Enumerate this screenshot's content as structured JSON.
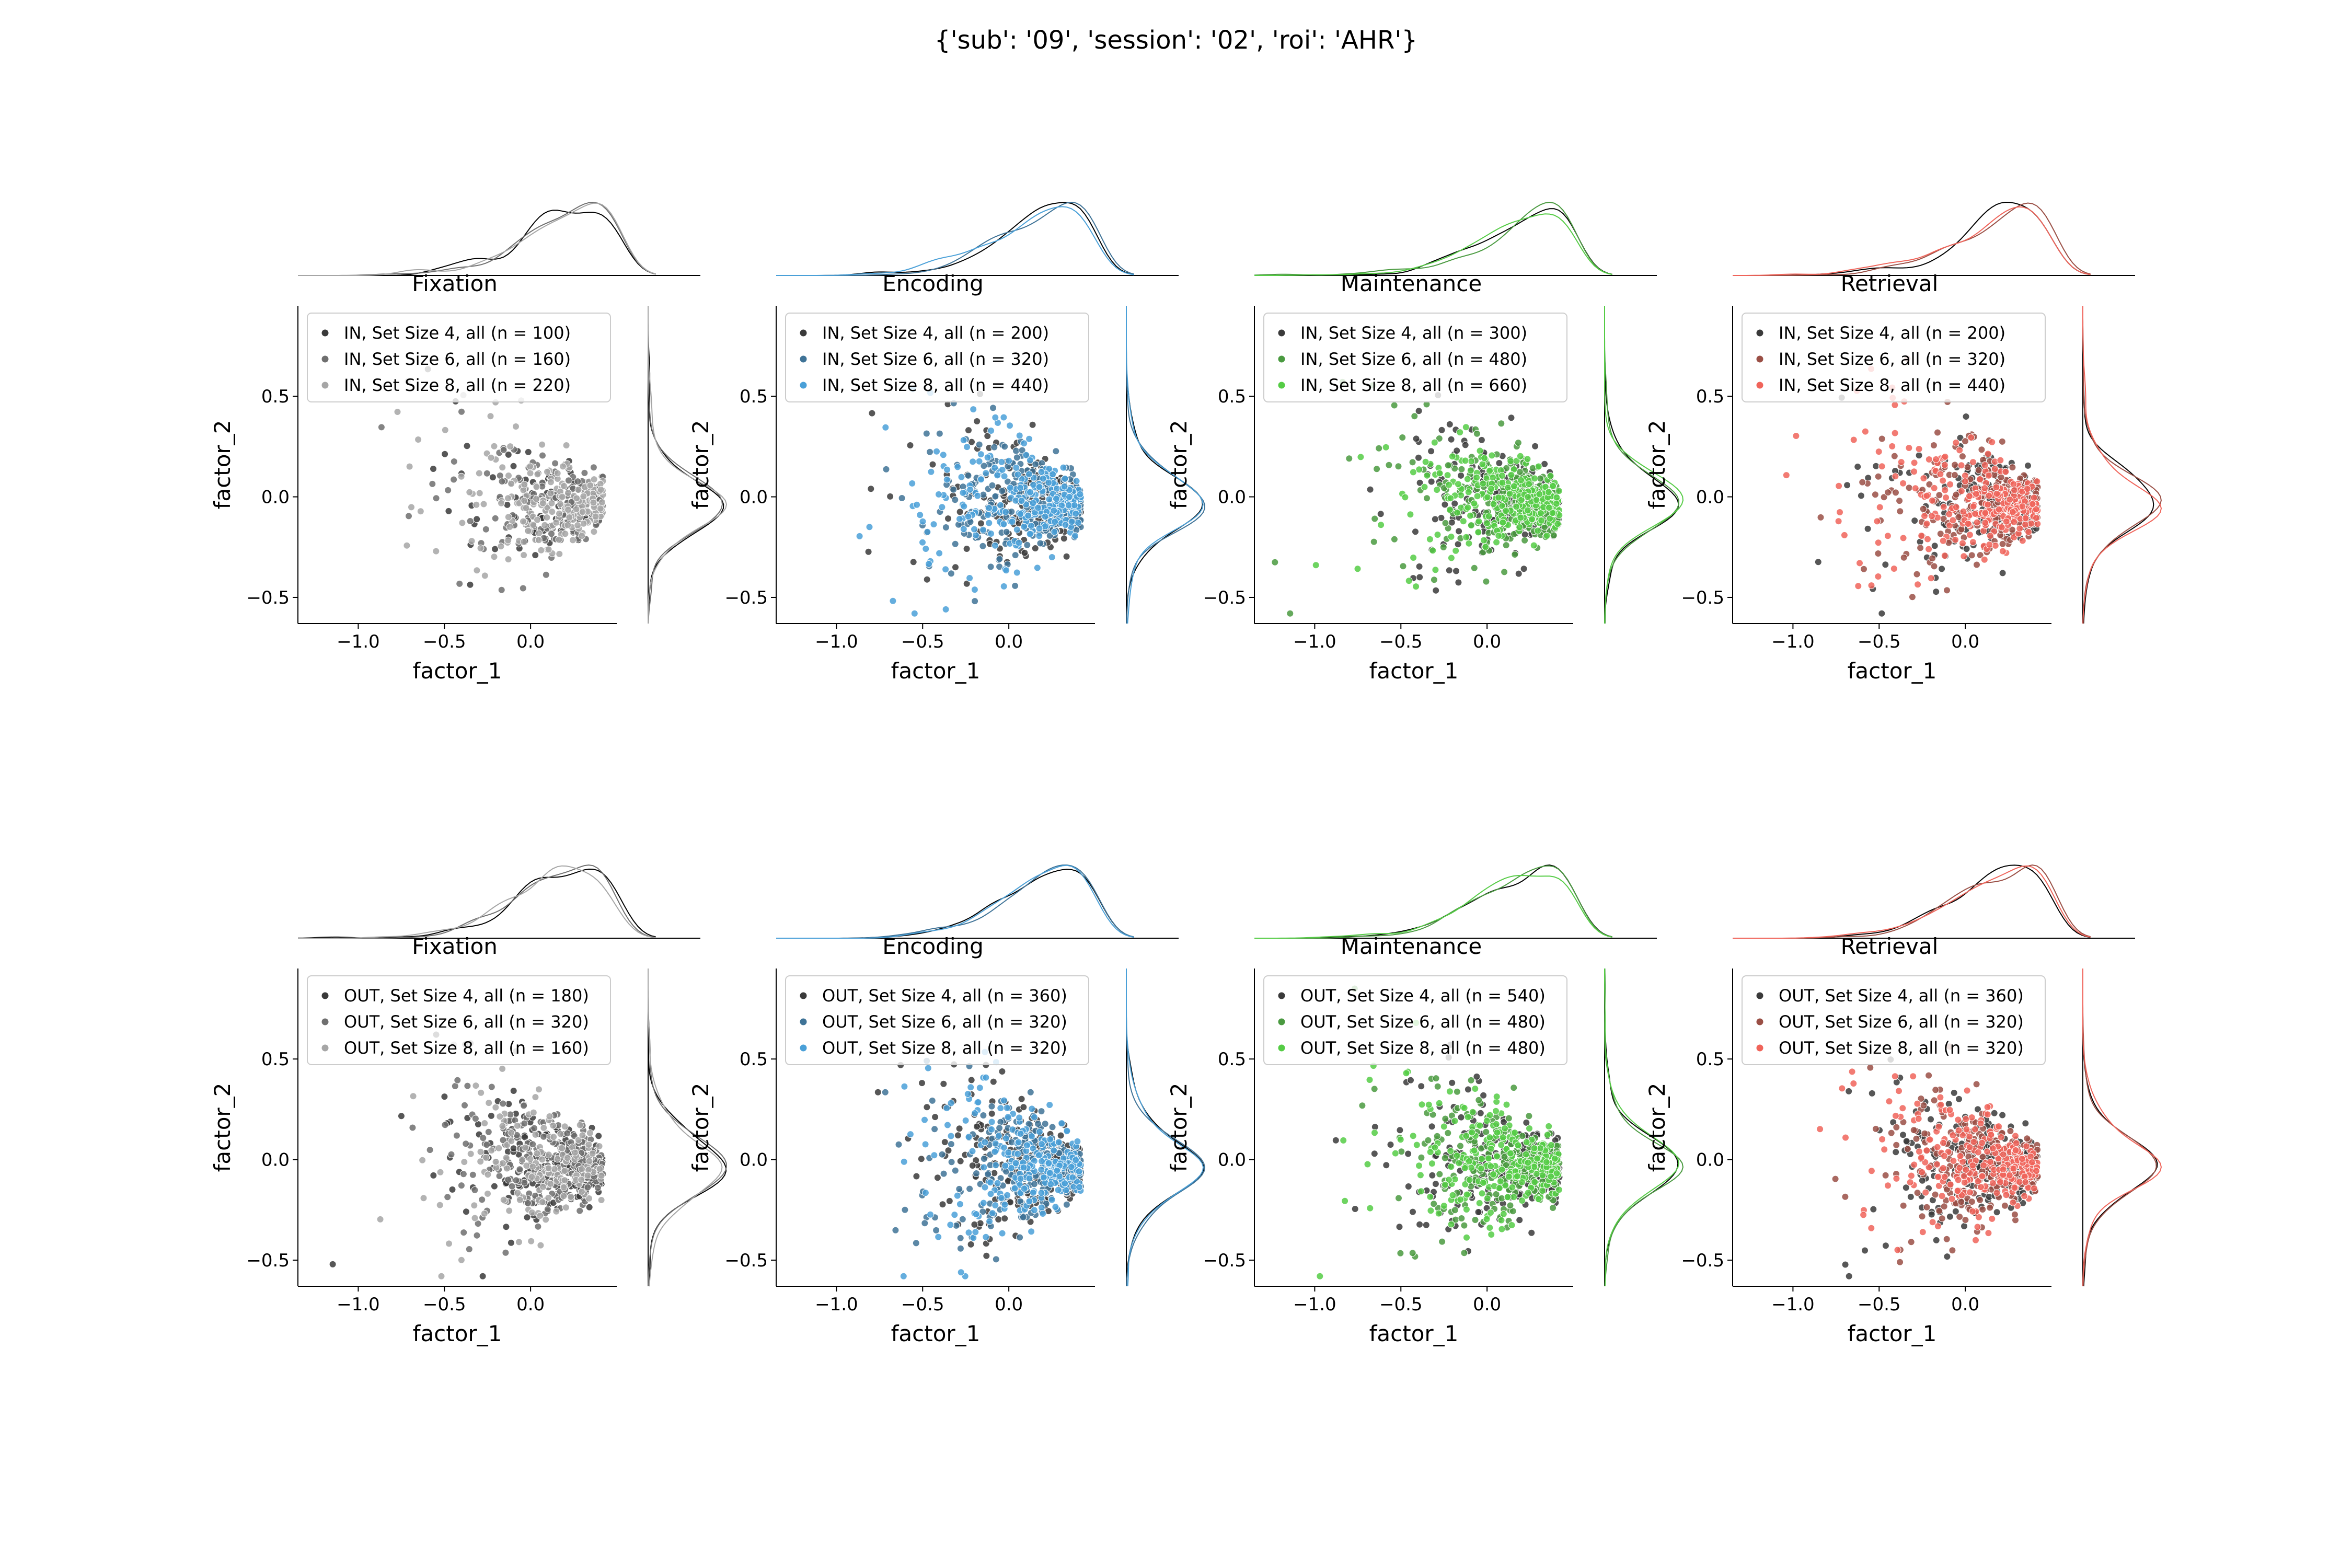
{
  "figure": {
    "title": "{'sub': '09', 'session': '02', 'roi': 'AHR'}"
  },
  "axes": {
    "xlabel": "factor_1",
    "ylabel": "factor_2",
    "xlim": [
      -1.35,
      0.5
    ],
    "ylim": [
      -0.63,
      0.95
    ],
    "xticks": [
      -1.0,
      -0.5,
      0.0
    ],
    "xtick_labels": [
      "−1.0",
      "−0.5",
      "0.0"
    ],
    "yticks": [
      -0.5,
      0.0,
      0.5
    ],
    "ytick_labels": [
      "−0.5",
      "0.0",
      "0.5"
    ]
  },
  "colors": {
    "Fixation": [
      "#3a3a3a",
      "#6f6f6f",
      "#a6a6a6"
    ],
    "Encoding": [
      "#3a3a3a",
      "#3f7397",
      "#4aa0d8"
    ],
    "Maintenance": [
      "#3a3a3a",
      "#4a9a40",
      "#55cc45"
    ],
    "Retrieval": [
      "#3a3a3a",
      "#9a4f45",
      "#f0645a"
    ]
  },
  "chart_data": [
    {
      "type": "scatter",
      "group": "IN",
      "title": "Fixation",
      "xlabel": "factor_1",
      "ylabel": "factor_2",
      "series": [
        {
          "name": "IN, Set Size 4, all (n = 100)",
          "n": 100
        },
        {
          "name": "IN, Set Size 6, all (n = 160)",
          "n": 160
        },
        {
          "name": "IN, Set Size 8, all (n = 220)",
          "n": 220
        }
      ]
    },
    {
      "type": "scatter",
      "group": "IN",
      "title": "Encoding",
      "xlabel": "factor_1",
      "ylabel": "factor_2",
      "series": [
        {
          "name": "IN, Set Size 4, all (n = 200)",
          "n": 200
        },
        {
          "name": "IN, Set Size 6, all (n = 320)",
          "n": 320
        },
        {
          "name": "IN, Set Size 8, all (n = 440)",
          "n": 440
        }
      ]
    },
    {
      "type": "scatter",
      "group": "IN",
      "title": "Maintenance",
      "xlabel": "factor_1",
      "ylabel": "factor_2",
      "series": [
        {
          "name": "IN, Set Size 4, all (n = 300)",
          "n": 300
        },
        {
          "name": "IN, Set Size 6, all (n = 480)",
          "n": 480
        },
        {
          "name": "IN, Set Size 8, all (n = 660)",
          "n": 660
        }
      ]
    },
    {
      "type": "scatter",
      "group": "IN",
      "title": "Retrieval",
      "xlabel": "factor_1",
      "ylabel": "factor_2",
      "series": [
        {
          "name": "IN, Set Size 4, all (n = 200)",
          "n": 200
        },
        {
          "name": "IN, Set Size 6, all (n = 320)",
          "n": 320
        },
        {
          "name": "IN, Set Size 8, all (n = 440)",
          "n": 440
        }
      ]
    },
    {
      "type": "scatter",
      "group": "OUT",
      "title": "Fixation",
      "xlabel": "factor_1",
      "ylabel": "factor_2",
      "series": [
        {
          "name": "OUT, Set Size 4, all (n = 180)",
          "n": 180
        },
        {
          "name": "OUT, Set Size 6, all (n = 320)",
          "n": 320
        },
        {
          "name": "OUT, Set Size 8, all (n = 160)",
          "n": 160
        }
      ]
    },
    {
      "type": "scatter",
      "group": "OUT",
      "title": "Encoding",
      "xlabel": "factor_1",
      "ylabel": "factor_2",
      "series": [
        {
          "name": "OUT, Set Size 4, all (n = 360)",
          "n": 360
        },
        {
          "name": "OUT, Set Size 6, all (n = 320)",
          "n": 320
        },
        {
          "name": "OUT, Set Size 8, all (n = 320)",
          "n": 320
        }
      ]
    },
    {
      "type": "scatter",
      "group": "OUT",
      "title": "Maintenance",
      "xlabel": "factor_1",
      "ylabel": "factor_2",
      "series": [
        {
          "name": "OUT, Set Size 4, all (n = 540)",
          "n": 540
        },
        {
          "name": "OUT, Set Size 6, all (n = 480)",
          "n": 480
        },
        {
          "name": "OUT, Set Size 8, all (n = 480)",
          "n": 480
        }
      ]
    },
    {
      "type": "scatter",
      "group": "OUT",
      "title": "Retrieval",
      "xlabel": "factor_1",
      "ylabel": "factor_2",
      "series": [
        {
          "name": "OUT, Set Size 4, all (n = 360)",
          "n": 360
        },
        {
          "name": "OUT, Set Size 6, all (n = 320)",
          "n": 320
        },
        {
          "name": "OUT, Set Size 8, all (n = 320)",
          "n": 320
        }
      ]
    }
  ]
}
